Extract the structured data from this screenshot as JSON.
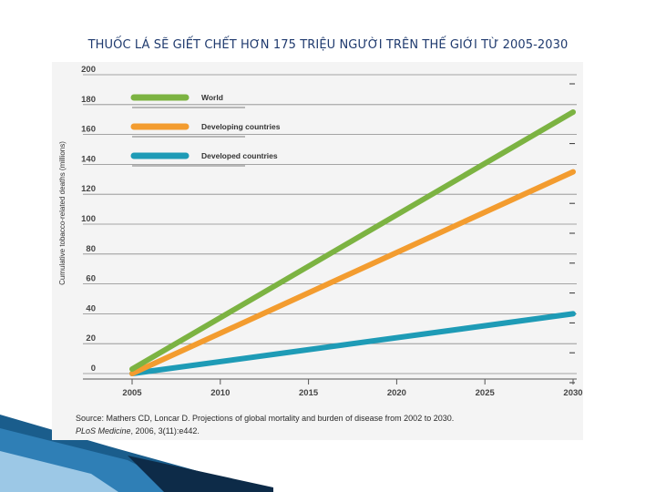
{
  "slide": {
    "title": "THUỐC LÁ SẼ GIẾT CHẾT HƠN 175 TRIỆU NGƯỜI TRÊN THẾ GIỚI TỪ 2005-2030"
  },
  "source": {
    "line1": "Source: Mathers CD, Loncar D. Projections of global mortality and burden of disease from 2002 to 2030.",
    "line2_italic": "PLoS Medicine",
    "line2_rest": ", 2006, 3(11):e442."
  },
  "colors": {
    "world": "#7cb342",
    "developing": "#f39c2f",
    "developed": "#1e9bb6",
    "title": "#1f3a6e"
  },
  "chart_data": {
    "type": "line",
    "title": "",
    "xlabel": "",
    "ylabel": "Cumulative tobacco-related deaths (millions)",
    "xlim": [
      2005,
      2030
    ],
    "ylim": [
      0,
      200
    ],
    "x_ticks": [
      "2005",
      "2010",
      "2015",
      "2020",
      "2025",
      "2030"
    ],
    "y_ticks": [
      "0",
      "20",
      "40",
      "60",
      "80",
      "100",
      "120",
      "140",
      "160",
      "180",
      "200"
    ],
    "grid": true,
    "legend": "top-left",
    "series": [
      {
        "name": "World",
        "color": "#7cb342",
        "x": [
          2005,
          2030
        ],
        "y": [
          3,
          175
        ]
      },
      {
        "name": "Developing countries",
        "color": "#f39c2f",
        "x": [
          2005,
          2030
        ],
        "y": [
          0,
          135
        ]
      },
      {
        "name": "Developed countries",
        "color": "#1e9bb6",
        "x": [
          2005,
          2030
        ],
        "y": [
          0,
          40
        ]
      }
    ]
  }
}
